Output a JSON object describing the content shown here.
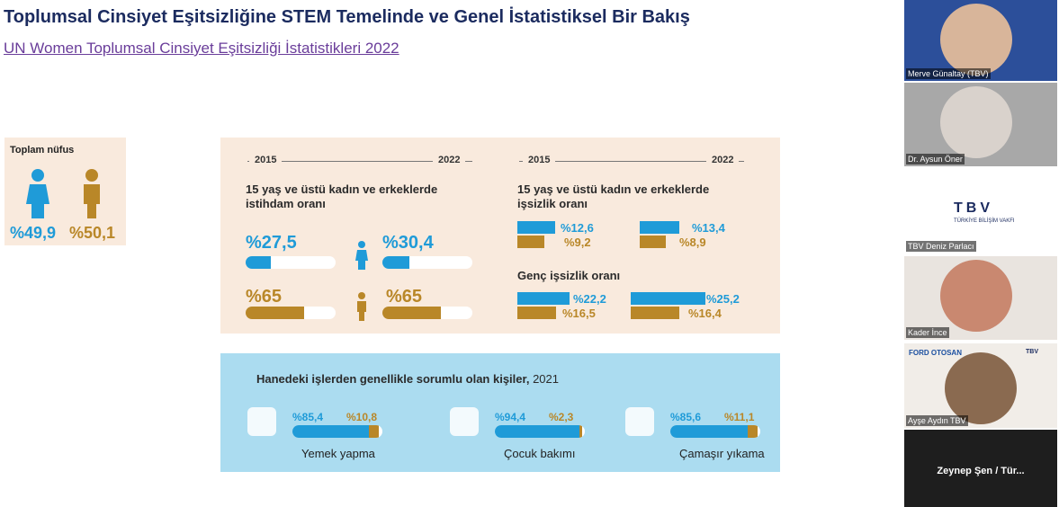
{
  "slide": {
    "title": "Toplumsal Cinsiyet Eşitsizliğine STEM Temelinde ve Genel İstatistiksel Bir Bakış",
    "subtitle": "UN Women Toplumsal Cinsiyet Eşitsizliği İstatistikleri 2022",
    "population": {
      "label": "Toplam nüfus",
      "female": {
        "value": 49.9,
        "label": "%49,9"
      },
      "male": {
        "value": 50.1,
        "label": "%50,1"
      }
    },
    "employment": {
      "year_start": "2015",
      "year_end": "2022",
      "heading": "15 yaş ve üstü kadın ve erkeklerde istihdam oranı",
      "female_2015": {
        "value": 27.5,
        "label": "%27,5"
      },
      "female_2022": {
        "value": 30.4,
        "label": "%30,4"
      },
      "male_2015": {
        "value": 65,
        "label": "%65"
      },
      "male_2022": {
        "value": 65,
        "label": "%65"
      }
    },
    "unemployment": {
      "year_start": "2015",
      "year_end": "2022",
      "heading": "15 yaş ve üstü kadın ve erkeklerde işsizlik oranı",
      "female_2015": {
        "value": 12.6,
        "label": "%12,6"
      },
      "male_2015": {
        "value": 9.2,
        "label": "%9,2"
      },
      "female_2022": {
        "value": 13.4,
        "label": "%13,4"
      },
      "male_2022": {
        "value": 8.9,
        "label": "%8,9"
      },
      "youth_heading": "Genç işsizlik oranı",
      "youth_female_2015": {
        "value": 22.2,
        "label": "%22,2"
      },
      "youth_male_2015": {
        "value": 16.5,
        "label": "%16,5"
      },
      "youth_female_2022": {
        "value": 25.2,
        "label": "%25,2"
      },
      "youth_male_2022": {
        "value": 16.4,
        "label": "%16,4"
      }
    },
    "household": {
      "heading": "Hanedeki işlerden genellikle sorumlu olan kişiler,",
      "year": "2021",
      "items": [
        {
          "label": "Yemek yapma",
          "female": {
            "value": 85.4,
            "label": "%85,4"
          },
          "male": {
            "value": 10.8,
            "label": "%10,8"
          }
        },
        {
          "label": "Çocuk bakımı",
          "female": {
            "value": 94.4,
            "label": "%94,4"
          },
          "male": {
            "value": 2.3,
            "label": "%2,3"
          }
        },
        {
          "label": "Çamaşır yıkama",
          "female": {
            "value": 85.6,
            "label": "%85,6"
          },
          "male": {
            "value": 11.1,
            "label": "%11,1"
          }
        }
      ]
    }
  },
  "participants": [
    {
      "name": "Merve Günaltay (TBV)"
    },
    {
      "name": "Dr. Aysun Öner"
    },
    {
      "name": "TBV Deniz Parlacı",
      "logo": "TBV",
      "logo_sub": "TÜRKİYE BİLİŞİM VAKFI"
    },
    {
      "name": "Kader İnce"
    },
    {
      "name": "Ayşe Aydın TBV",
      "logo": "FORD OTOSAN",
      "logo_sub": "TBV"
    },
    {
      "name": "Zeynep Şen / Tür..."
    }
  ]
}
